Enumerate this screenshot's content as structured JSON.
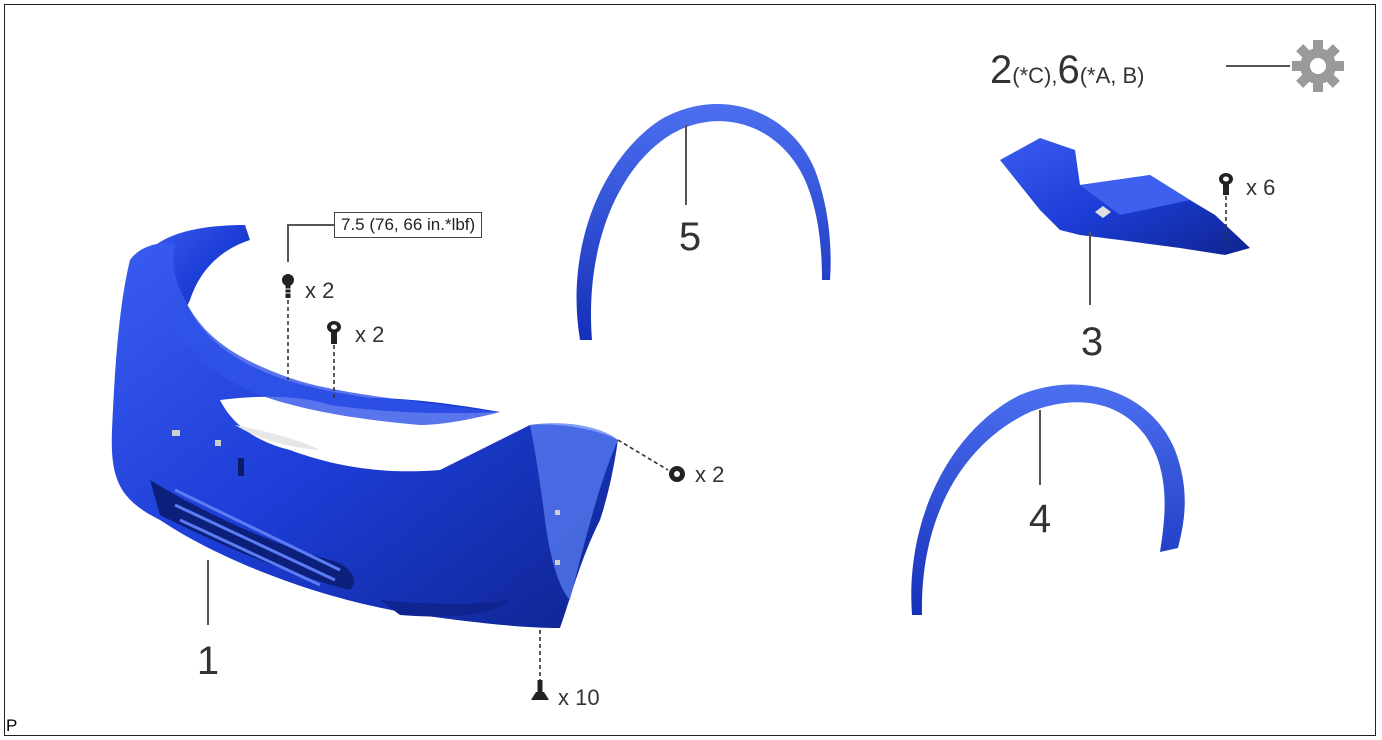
{
  "callouts": {
    "bumper": "1",
    "cover_upper": "3",
    "arch_liner_rear": "4",
    "arch_liner_front": "5"
  },
  "reuse_note": {
    "part_a": "2",
    "part_a_note": "(*C),",
    "part_b": "6",
    "part_b_note": "(*A, B)",
    "icon": "gear-icon"
  },
  "quantities": {
    "bolt_top_left": "x 2",
    "clip_top_mid": "x 2",
    "clip_side": "x 2",
    "screw_bottom": "x 10",
    "clip_cover": "x 6"
  },
  "torque_spec": "7.5 (76, 66 in.*lbf)",
  "figure_code": "P",
  "colors": {
    "part_blue": "#1c3dd6",
    "part_blue_dark": "#0f248f",
    "part_blue_light": "#4c6ff0",
    "gear_grey": "#9a9a9a"
  }
}
